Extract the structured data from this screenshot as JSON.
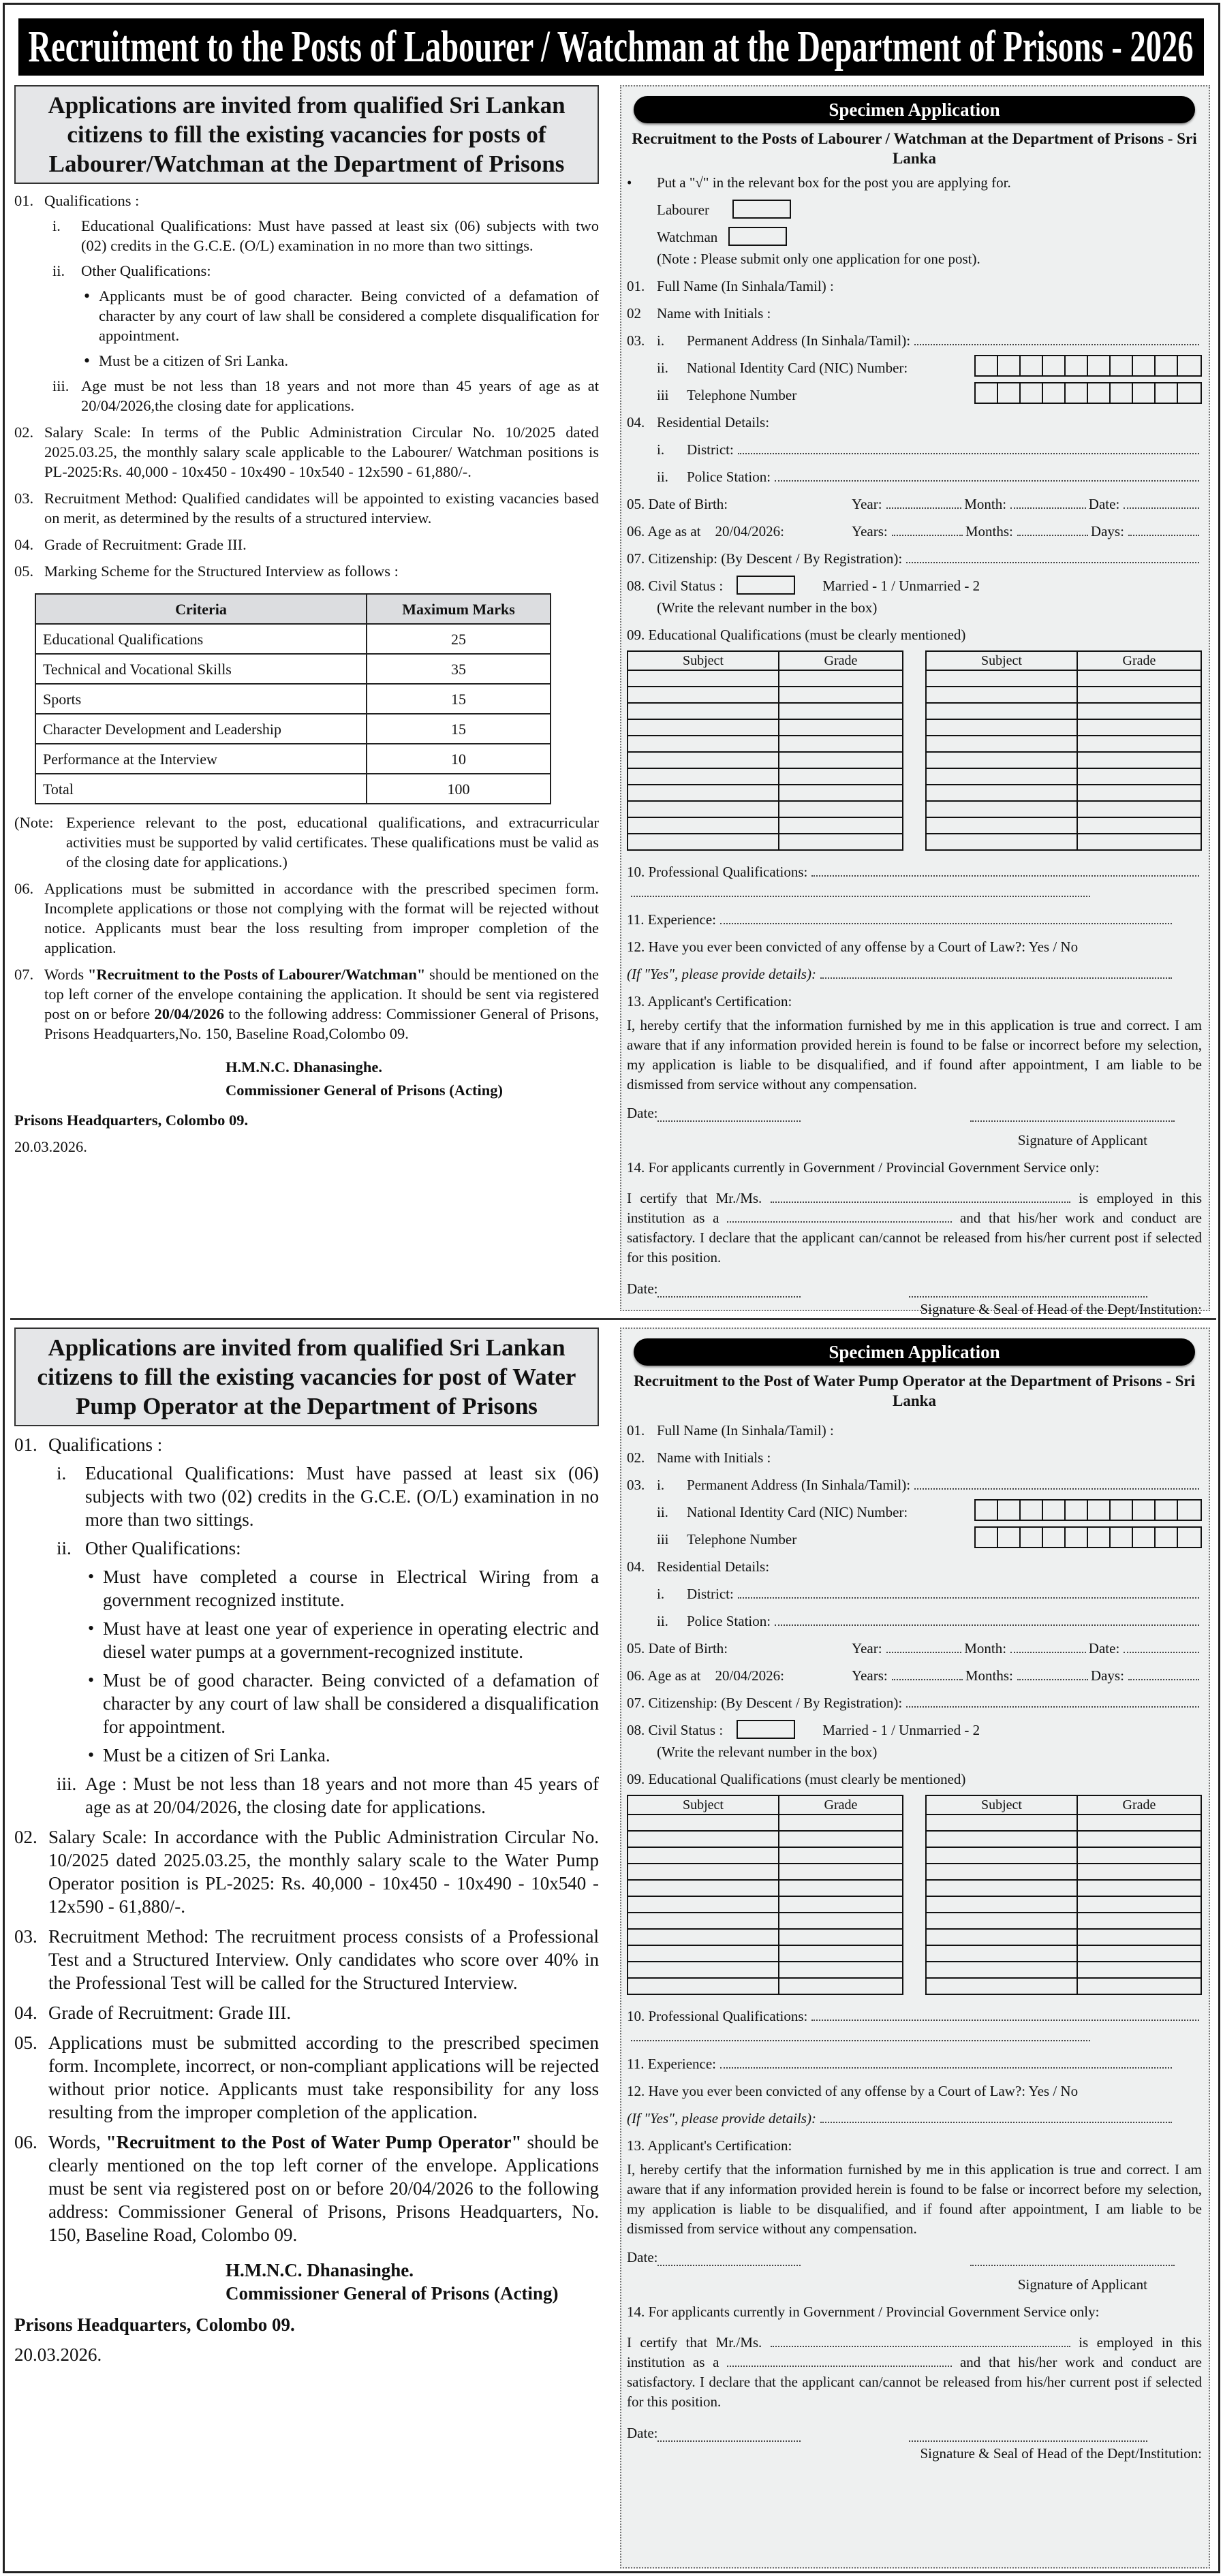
{
  "title": "Recruitment to the Posts of Labourer / Watchman at the Department of Prisons - 2026",
  "sections": [
    {
      "notice": {
        "heading": "Applications are invited from qualified Sri Lankan citizens to fill the existing vacancies for posts of Labourer/Watchman at the Department of Prisons",
        "items": [
          {
            "num": "01.",
            "text": "Qualifications :",
            "subs": [
              {
                "num": "i.",
                "text": "Educational Qualifications: Must have passed at least six (06) subjects with two (02) credits in the G.C.E. (O/L) examination in no more than two sittings."
              },
              {
                "num": "ii.",
                "text": "Other Qualifications:",
                "bullets": [
                  "Applicants must be of good character. Being convicted of a defamation of character by any court of law shall be considered a complete disqualification for appointment.",
                  "Must be a citizen of Sri Lanka."
                ]
              },
              {
                "num": "iii.",
                "text": "Age must be not less than 18 years and not more than 45 years of age as at 20/04/2026,the closing date for applications."
              }
            ]
          },
          {
            "num": "02.",
            "text": "Salary Scale:  In terms of the Public Administration Circular No. 10/2025 dated 2025.03.25, the monthly salary scale applicable to the Labourer/ Watchman positions is PL-2025:Rs. 40,000 - 10x450 - 10x490 - 10x540 - 12x590 - 61,880/-."
          },
          {
            "num": "03.",
            "text": "Recruitment Method: Qualified candidates will be appointed to existing vacancies based on merit, as determined by the results of a structured interview."
          },
          {
            "num": "04.",
            "text": "Grade of Recruitment: Grade III."
          },
          {
            "num": "05.",
            "text": "Marking Scheme for the Structured Interview as follows :",
            "table": {
              "headers": [
                "Criteria",
                "Maximum Marks"
              ],
              "rows": [
                [
                  "Educational Qualifications",
                  "25"
                ],
                [
                  "Technical and Vocational Skills",
                  "35"
                ],
                [
                  "Sports",
                  "15"
                ],
                [
                  "Character Development and Leadership",
                  "15"
                ],
                [
                  "Performance at the Interview",
                  "10"
                ],
                [
                  "Total",
                  "100"
                ]
              ]
            },
            "note": {
              "label": "(Note:",
              "text": "Experience relevant to the post, educational qualifications, and extracurricular activities must be supported by valid certificates. These qualifications must be valid as of the closing date for applications.)"
            }
          },
          {
            "num": "06.",
            "text": "Applications must be submitted in accordance with the prescribed specimen form. Incomplete applications or those not complying with the format will be rejected without notice. Applicants must bear the loss resulting from improper completion of the application."
          },
          {
            "num": "07.",
            "parts": [
              {
                "t": "Words "
              },
              {
                "t": "\"Recruitment to the Posts of Labourer/Watchman\"",
                "b": true
              },
              {
                "t": " should be mentioned on the top left corner of the envelope containing the application. It should be sent via registered post on or before "
              },
              {
                "t": "20/04/2026",
                "b": true
              },
              {
                "t": " to the following address: Commissioner General of Prisons, Prisons Headquarters,No. 150, Baseline Road,Colombo 09."
              }
            ]
          }
        ],
        "signature_name": "H.M.N.C. Dhanasinghe.",
        "signature_title": "Commissioner General of Prisons (Acting)",
        "place": "Prisons Headquarters, Colombo 09.",
        "date": "20.03.2026."
      },
      "form": {
        "header": "Specimen Application",
        "title": "Recruitment to the Posts of Labourer / Watchman at the Department of Prisons - Sri Lanka",
        "post_choice": {
          "instruction": "Put a \"√\" in the relevant box for the post you are applying for.",
          "options": [
            "Labourer",
            "Watchman"
          ],
          "note": "(Note : Please submit only one application for one post)."
        },
        "n01": "01.",
        "full_name": "Full Name (In Sinhala/Tamil) :",
        "n02": "02",
        "initials": "Name with Initials :",
        "n03": "03.",
        "addr_num": "i.",
        "addr": "Permanent Address (In Sinhala/Tamil):",
        "nic_num": "ii.",
        "nic": "National Identity Card (NIC) Number:",
        "tel_num": "iii",
        "tel": "Telephone Number",
        "n04": "04.",
        "residential": "Residential Details:",
        "district_num": "i.",
        "district": "District:",
        "police_num": "ii.",
        "police": "Police Station:",
        "dob": "05. Date of Birth:",
        "dob_year": "Year:",
        "dob_month": "Month:",
        "dob_date": "Date:",
        "age": "06. Age as at",
        "age_date": "20/04/2026:",
        "age_years": "Years:",
        "age_months": "Months:",
        "age_days": "Days:",
        "citizenship": "07. Citizenship: (By Descent / By Registration):",
        "civil": "08.  Civil Status :",
        "civil_opts": "Married - 1 / Unmarried - 2",
        "civil_note": "(Write the relevant number in the box)",
        "edu": "09.  Educational Qualifications (must be clearly mentioned)",
        "edu_headers": [
          "Subject",
          "Grade"
        ],
        "prof": "10. Professional Qualifications:",
        "exp": "11. Experience:",
        "convicted": "12. Have you ever been convicted of any offense by a Court of Law?: Yes / No",
        "if_yes": "(If \"Yes\", please provide details):",
        "cert_title": "13. Applicant's Certification:",
        "cert_text": "I, hereby certify that the information furnished by me in this application is true and correct. I am aware that if any information provided herein is found to be false or incorrect before my selection, my application is liable to be disqualified, and if found after appointment, I am liable to be dismissed from service without any compensation.",
        "date_label": "Date:",
        "sig_applicant": "Signature of Applicant",
        "gov_title": "14. For applicants currently in Government / Provincial Government Service only:",
        "gov_1": "I certify that Mr./Ms.",
        "gov_2": "is employed in this institution as a",
        "gov_3": "and that his/her work and conduct are satisfactory. I declare that the applicant can/cannot be released from his/her current post if selected for this position.",
        "sig_head": "Signature & Seal of Head of the Dept/Institution:"
      }
    },
    {
      "notice": {
        "heading": "Applications are invited from qualified Sri Lankan citizens to fill the existing vacancies for post of Water Pump Operator at the Department of Prisons",
        "items": [
          {
            "num": "01.",
            "text": "Qualifications :",
            "subs": [
              {
                "num": "i.",
                "text": "Educational Qualifications: Must have passed at least six (06) subjects with two (02) credits in the G.C.E. (O/L) examination in no more than two sittings."
              },
              {
                "num": "ii.",
                "text": "Other Qualifications:",
                "bullets": [
                  "Must have completed a course in Electrical Wiring from a government recognized institute.",
                  "Must have at least one year of experience in operating electric and diesel water pumps at a government-recognized institute.",
                  "Must be of good character. Being convicted of a defamation of character by any court of law shall be considered a disqualification for appointment.",
                  "Must be a citizen of Sri Lanka."
                ]
              },
              {
                "num": "iii.",
                "text": "Age : Must be not less than 18 years and not more than 45 years of age as at 20/04/2026, the closing date for applications."
              }
            ]
          },
          {
            "num": "02.",
            "text": "Salary Scale:  In accordance with the Public Administration Circular No. 10/2025 dated 2025.03.25, the monthly salary scale to the  Water Pump Operator position is PL-2025: Rs. 40,000 - 10x450 - 10x490 - 10x540 - 12x590 - 61,880/-."
          },
          {
            "num": "03.",
            "text": "Recruitment Method: The recruitment process consists of a Professional Test and a Structured Interview. Only candidates who score over 40% in the Professional Test will be called for the Structured Interview."
          },
          {
            "num": "04.",
            "text": "Grade of Recruitment: Grade III."
          },
          {
            "num": "05.",
            "text": "Applications must be submitted according to the prescribed specimen form. Incomplete, incorrect, or non-compliant applications will be rejected without prior notice. Applicants must take responsibility for any loss resulting from the improper completion of the application."
          },
          {
            "num": "06.",
            "parts": [
              {
                "t": "Words, "
              },
              {
                "t": "\"Recruitment to the Post of Water Pump Operator\"",
                "b": true
              },
              {
                "t": " should be clearly mentioned on the top left corner of the envelope. Applications must be sent via registered post on or before 20/04/2026 to the following address: Commissioner General of Prisons, Prisons Headquarters, No. 150, Baseline Road, Colombo 09."
              }
            ]
          }
        ],
        "signature_name": "H.M.N.C. Dhanasinghe.",
        "signature_title": "Commissioner General of Prisons (Acting)",
        "place": "Prisons Headquarters, Colombo 09.",
        "date": "20.03.2026."
      },
      "form": {
        "header": "Specimen Application",
        "title": "Recruitment to the Post of Water Pump Operator at the Department of Prisons - Sri Lanka",
        "n01": "01.",
        "full_name": "Full Name (In Sinhala/Tamil) :",
        "n02": "02.",
        "initials": "Name with Initials :",
        "n03": "03.",
        "addr_num": "i.",
        "addr": "Permanent Address (In Sinhala/Tamil):",
        "nic_num": "ii.",
        "nic": "National Identity Card (NIC) Number:",
        "tel_num": "iii",
        "tel": "Telephone Number",
        "n04": "04.",
        "residential": "Residential Details:",
        "district_num": "i.",
        "district": "District:",
        "police_num": "ii.",
        "police": "Police Station:",
        "dob": "05. Date of Birth:",
        "dob_year": "Year:",
        "dob_month": "Month:",
        "dob_date": "Date:",
        "age": "06. Age as at",
        "age_date": "20/04/2026:",
        "age_years": "Years:",
        "age_months": "Months:",
        "age_days": "Days:",
        "citizenship": "07. Citizenship: (By Descent / By Registration):",
        "civil": "08.  Civil Status :",
        "civil_opts": "Married - 1 / Unmarried - 2",
        "civil_note": "(Write the relevant number in the box)",
        "edu": "09.  Educational Qualifications (must clearly be mentioned)",
        "edu_headers": [
          "Subject",
          "Grade"
        ],
        "prof": "10. Professional Qualifications:",
        "exp": "11. Experience:",
        "convicted": "12. Have you ever been convicted of any offense by a Court of Law?: Yes / No",
        "if_yes": "(If \"Yes\", please provide details):",
        "cert_title": "13. Applicant's Certification:",
        "cert_text": "I, hereby certify that the information furnished by me in this application is true and correct. I am aware that if any information provided herein is found to be false or incorrect before my selection, my application is liable to be disqualified, and if found after appointment, I am liable to be dismissed from service without any compensation.",
        "date_label": "Date:",
        "sig_applicant": "Signature of Applicant",
        "gov_title": "14. For applicants currently in Government / Provincial Government Service only:",
        "gov_1": "I certify that Mr./Ms.",
        "gov_2": "is employed in this institution as a",
        "gov_3": "and that his/her work and conduct are satisfactory. I declare that the applicant can/cannot be released from his/her current post if selected for this position.",
        "sig_head": "Signature & Seal of Head of the Dept/Institution:"
      }
    }
  ]
}
